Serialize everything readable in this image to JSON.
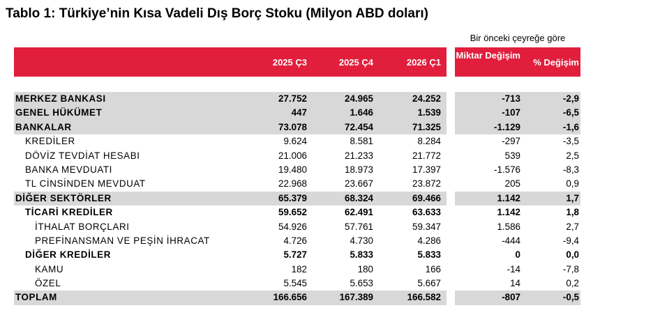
{
  "title": "Tablo 1: Türkiye’nin Kısa Vadeli Dış Borç Stoku (Milyon ABD doları)",
  "header_note": "Bir önceki çeyreğe göre",
  "colors": {
    "header_bg": "#e11e3c",
    "shaded_row": "#d8d8d8"
  },
  "columns": [
    "2025 Ç3",
    "2025 Ç4",
    "2026 Ç1",
    "Miktar Değişim",
    "% Değişim"
  ],
  "rows": [
    {
      "label": "MERKEZ BANKASI",
      "level": 0,
      "bold": true,
      "shaded": true,
      "values": [
        "27.752",
        "24.965",
        "24.252",
        "-713",
        "-2,9"
      ]
    },
    {
      "label": "GENEL HÜKÜMET",
      "level": 0,
      "bold": true,
      "shaded": true,
      "values": [
        "447",
        "1.646",
        "1.539",
        "-107",
        "-6,5"
      ]
    },
    {
      "label": "BANKALAR",
      "level": 0,
      "bold": true,
      "shaded": true,
      "values": [
        "73.078",
        "72.454",
        "71.325",
        "-1.129",
        "-1,6"
      ]
    },
    {
      "label": "KREDİLER",
      "level": 1,
      "bold": false,
      "shaded": false,
      "values": [
        "9.624",
        "8.581",
        "8.284",
        "-297",
        "-3,5"
      ]
    },
    {
      "label": "DÖVİZ TEVDİAT HESABI",
      "level": 1,
      "bold": false,
      "shaded": false,
      "values": [
        "21.006",
        "21.233",
        "21.772",
        "539",
        "2,5"
      ]
    },
    {
      "label": "BANKA MEVDUATI",
      "level": 1,
      "bold": false,
      "shaded": false,
      "values": [
        "19.480",
        "18.973",
        "17.397",
        "-1.576",
        "-8,3"
      ]
    },
    {
      "label": "TL CİNSİNDEN MEVDUAT",
      "level": 1,
      "bold": false,
      "shaded": false,
      "values": [
        "22.968",
        "23.667",
        "23.872",
        "205",
        "0,9"
      ]
    },
    {
      "label": "DİĞER SEKTÖRLER",
      "level": 0,
      "bold": true,
      "shaded": true,
      "values": [
        "65.379",
        "68.324",
        "69.466",
        "1.142",
        "1,7"
      ]
    },
    {
      "label": "TİCARİ KREDİLER",
      "level": 1,
      "bold": true,
      "shaded": false,
      "values": [
        "59.652",
        "62.491",
        "63.633",
        "1.142",
        "1,8"
      ]
    },
    {
      "label": "İTHALAT BORÇLARI",
      "level": 2,
      "bold": false,
      "shaded": false,
      "values": [
        "54.926",
        "57.761",
        "59.347",
        "1.586",
        "2,7"
      ]
    },
    {
      "label": "PREFİNANSMAN VE PEŞİN İHRACAT",
      "level": 2,
      "bold": false,
      "shaded": false,
      "values": [
        "4.726",
        "4.730",
        "4.286",
        "-444",
        "-9,4"
      ]
    },
    {
      "label": "DİĞER KREDİLER",
      "level": 1,
      "bold": true,
      "shaded": false,
      "values": [
        "5.727",
        "5.833",
        "5.833",
        "0",
        "0,0"
      ]
    },
    {
      "label": "KAMU",
      "level": 2,
      "bold": false,
      "shaded": false,
      "values": [
        "182",
        "180",
        "166",
        "-14",
        "-7,8"
      ]
    },
    {
      "label": "ÖZEL",
      "level": 2,
      "bold": false,
      "shaded": false,
      "values": [
        "5.545",
        "5.653",
        "5.667",
        "14",
        "0,2"
      ]
    },
    {
      "label": "TOPLAM",
      "level": 0,
      "bold": true,
      "shaded": true,
      "values": [
        "166.656",
        "167.389",
        "166.582",
        "-807",
        "-0,5"
      ]
    }
  ]
}
